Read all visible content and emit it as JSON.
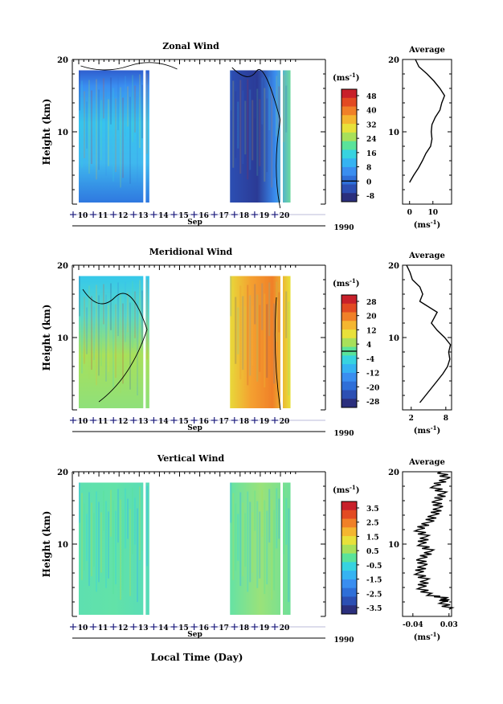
{
  "chart_data": [
    {
      "type": "heatmap",
      "title": "Zonal Wind",
      "ylabel": "Height (km)",
      "ylim": [
        0,
        20
      ],
      "yticks": [
        "20",
        "10"
      ],
      "x_month": "Sep",
      "x_year": "1990",
      "x_days": [
        "10",
        "11",
        "12",
        "13",
        "14",
        "15",
        "16",
        "17",
        "18",
        "19",
        "20"
      ],
      "data_ranges": [
        [
          10.0,
          13.5
        ],
        [
          17.5,
          20.5
        ]
      ],
      "colorbar": {
        "unit": "(ms",
        "unit_sup": "-1",
        "tick_labels": [
          "48",
          "40",
          "32",
          "24",
          "16",
          "8",
          "0",
          "-8"
        ]
      },
      "profile": {
        "title": "Average",
        "xlabel": "(ms",
        "xlabel_sup": "-1",
        "xticks": [
          "0",
          "10"
        ],
        "xlim": [
          -3,
          18
        ],
        "ylim": [
          0,
          20
        ],
        "yticks": [
          "20",
          "10"
        ],
        "points": [
          [
            0.0,
            3
          ],
          [
            1.8,
            4
          ],
          [
            3.8,
            5
          ],
          [
            5.5,
            6
          ],
          [
            7,
            7
          ],
          [
            9,
            8
          ],
          [
            9.6,
            9
          ],
          [
            9.3,
            10
          ],
          [
            9.6,
            11
          ],
          [
            11,
            12
          ],
          [
            13,
            13
          ],
          [
            13.8,
            14
          ],
          [
            15,
            15
          ],
          [
            13,
            16
          ],
          [
            10.5,
            17
          ],
          [
            7.5,
            18
          ],
          [
            4,
            19
          ],
          [
            2.5,
            20
          ]
        ]
      }
    },
    {
      "type": "heatmap",
      "title": "Meridional Wind",
      "ylabel": "Height (km)",
      "ylim": [
        0,
        20
      ],
      "yticks": [
        "20",
        "10"
      ],
      "x_month": "Sep",
      "x_year": "1990",
      "x_days": [
        "10",
        "11",
        "12",
        "13",
        "14",
        "15",
        "16",
        "17",
        "18",
        "19",
        "20"
      ],
      "data_ranges": [
        [
          10.0,
          13.5
        ],
        [
          17.5,
          20.5
        ]
      ],
      "colorbar": {
        "unit": "(ms",
        "unit_sup": "-1",
        "tick_labels": [
          "28",
          "20",
          "12",
          "4",
          "-4",
          "-12",
          "-20",
          "-28"
        ]
      },
      "profile": {
        "title": "Average",
        "xlabel": "(ms",
        "xlabel_sup": "-1",
        "xticks": [
          "2",
          "8"
        ],
        "xlim": [
          0.5,
          9
        ],
        "ylim": [
          0,
          20
        ],
        "yticks": [
          "20",
          "10"
        ],
        "points": [
          [
            3.5,
            1
          ],
          [
            4.5,
            2
          ],
          [
            5.5,
            3
          ],
          [
            6.5,
            4
          ],
          [
            7.5,
            5
          ],
          [
            8.3,
            6
          ],
          [
            8.7,
            7
          ],
          [
            8.5,
            8
          ],
          [
            8.8,
            9
          ],
          [
            7.8,
            10
          ],
          [
            6.5,
            11
          ],
          [
            5.5,
            12
          ],
          [
            6.5,
            13.5
          ],
          [
            4.5,
            14.5
          ],
          [
            3.5,
            15
          ],
          [
            4,
            16
          ],
          [
            3.5,
            17
          ],
          [
            2.2,
            18
          ],
          [
            1.8,
            19
          ],
          [
            1.2,
            20
          ]
        ]
      }
    },
    {
      "type": "heatmap",
      "title": "Vertical Wind",
      "ylabel": "Height (km)",
      "ylim": [
        0,
        20
      ],
      "yticks": [
        "20",
        "10"
      ],
      "x_month": "Sep",
      "x_year": "1990",
      "x_days": [
        "10",
        "11",
        "12",
        "13",
        "14",
        "15",
        "16",
        "17",
        "18",
        "19",
        "20"
      ],
      "data_ranges": [
        [
          10.0,
          13.5
        ],
        [
          17.5,
          20.5
        ]
      ],
      "colorbar": {
        "unit": "(ms",
        "unit_sup": "-1",
        "tick_labels": [
          "3.5",
          "2.5",
          "1.5",
          "0.5",
          "-0.5",
          "-1.5",
          "-2.5",
          "-3.5"
        ]
      },
      "profile": {
        "title": "Average",
        "xlabel": "(ms",
        "xlabel_sup": "-1",
        "xticks": [
          "-0.04",
          "0.03"
        ],
        "xlim": [
          -0.06,
          0.035
        ],
        "ylim": [
          0,
          20
        ],
        "yticks": [
          "20",
          "10"
        ],
        "points": [
          [
            0.03,
            1
          ],
          [
            0.018,
            2
          ],
          [
            0.024,
            2.5
          ],
          [
            -0.01,
            3
          ],
          [
            -0.025,
            4
          ],
          [
            -0.015,
            5
          ],
          [
            -0.03,
            6
          ],
          [
            -0.02,
            7
          ],
          [
            -0.025,
            8
          ],
          [
            -0.005,
            9
          ],
          [
            -0.025,
            10
          ],
          [
            -0.015,
            11
          ],
          [
            -0.03,
            12
          ],
          [
            -0.01,
            13
          ],
          [
            0.0,
            14
          ],
          [
            0.01,
            15
          ],
          [
            0.005,
            16
          ],
          [
            0.02,
            17
          ],
          [
            0.0,
            18
          ],
          [
            0.025,
            19
          ],
          [
            0.015,
            20
          ]
        ]
      }
    }
  ],
  "footer": {
    "xlabel": "Local Time (Day)"
  },
  "colors": {
    "zonal_scale": [
      "#2b2f7d",
      "#2c4fb3",
      "#2f6fd8",
      "#3a8ef0",
      "#35b3f2",
      "#37d3e0",
      "#5ae39a",
      "#a8e05a",
      "#e8e13a",
      "#f4b630",
      "#f08028",
      "#e24a22",
      "#c8202a"
    ],
    "merid_scale": [
      "#2b2f7d",
      "#2c4fb3",
      "#2f6fd8",
      "#3a8ef0",
      "#35b3f2",
      "#37d3e0",
      "#5ae39a",
      "#a8e05a",
      "#e8e13a",
      "#f4b630",
      "#f08028",
      "#e24a22",
      "#c8202a"
    ],
    "vert_scale": [
      "#2b2f7d",
      "#2c4fb3",
      "#2f6fd8",
      "#3a8ef0",
      "#35b3f2",
      "#37d3e0",
      "#5ae39a",
      "#a8e05a",
      "#e8e13a",
      "#f4b630",
      "#f08028",
      "#e24a22",
      "#c8202a"
    ]
  }
}
